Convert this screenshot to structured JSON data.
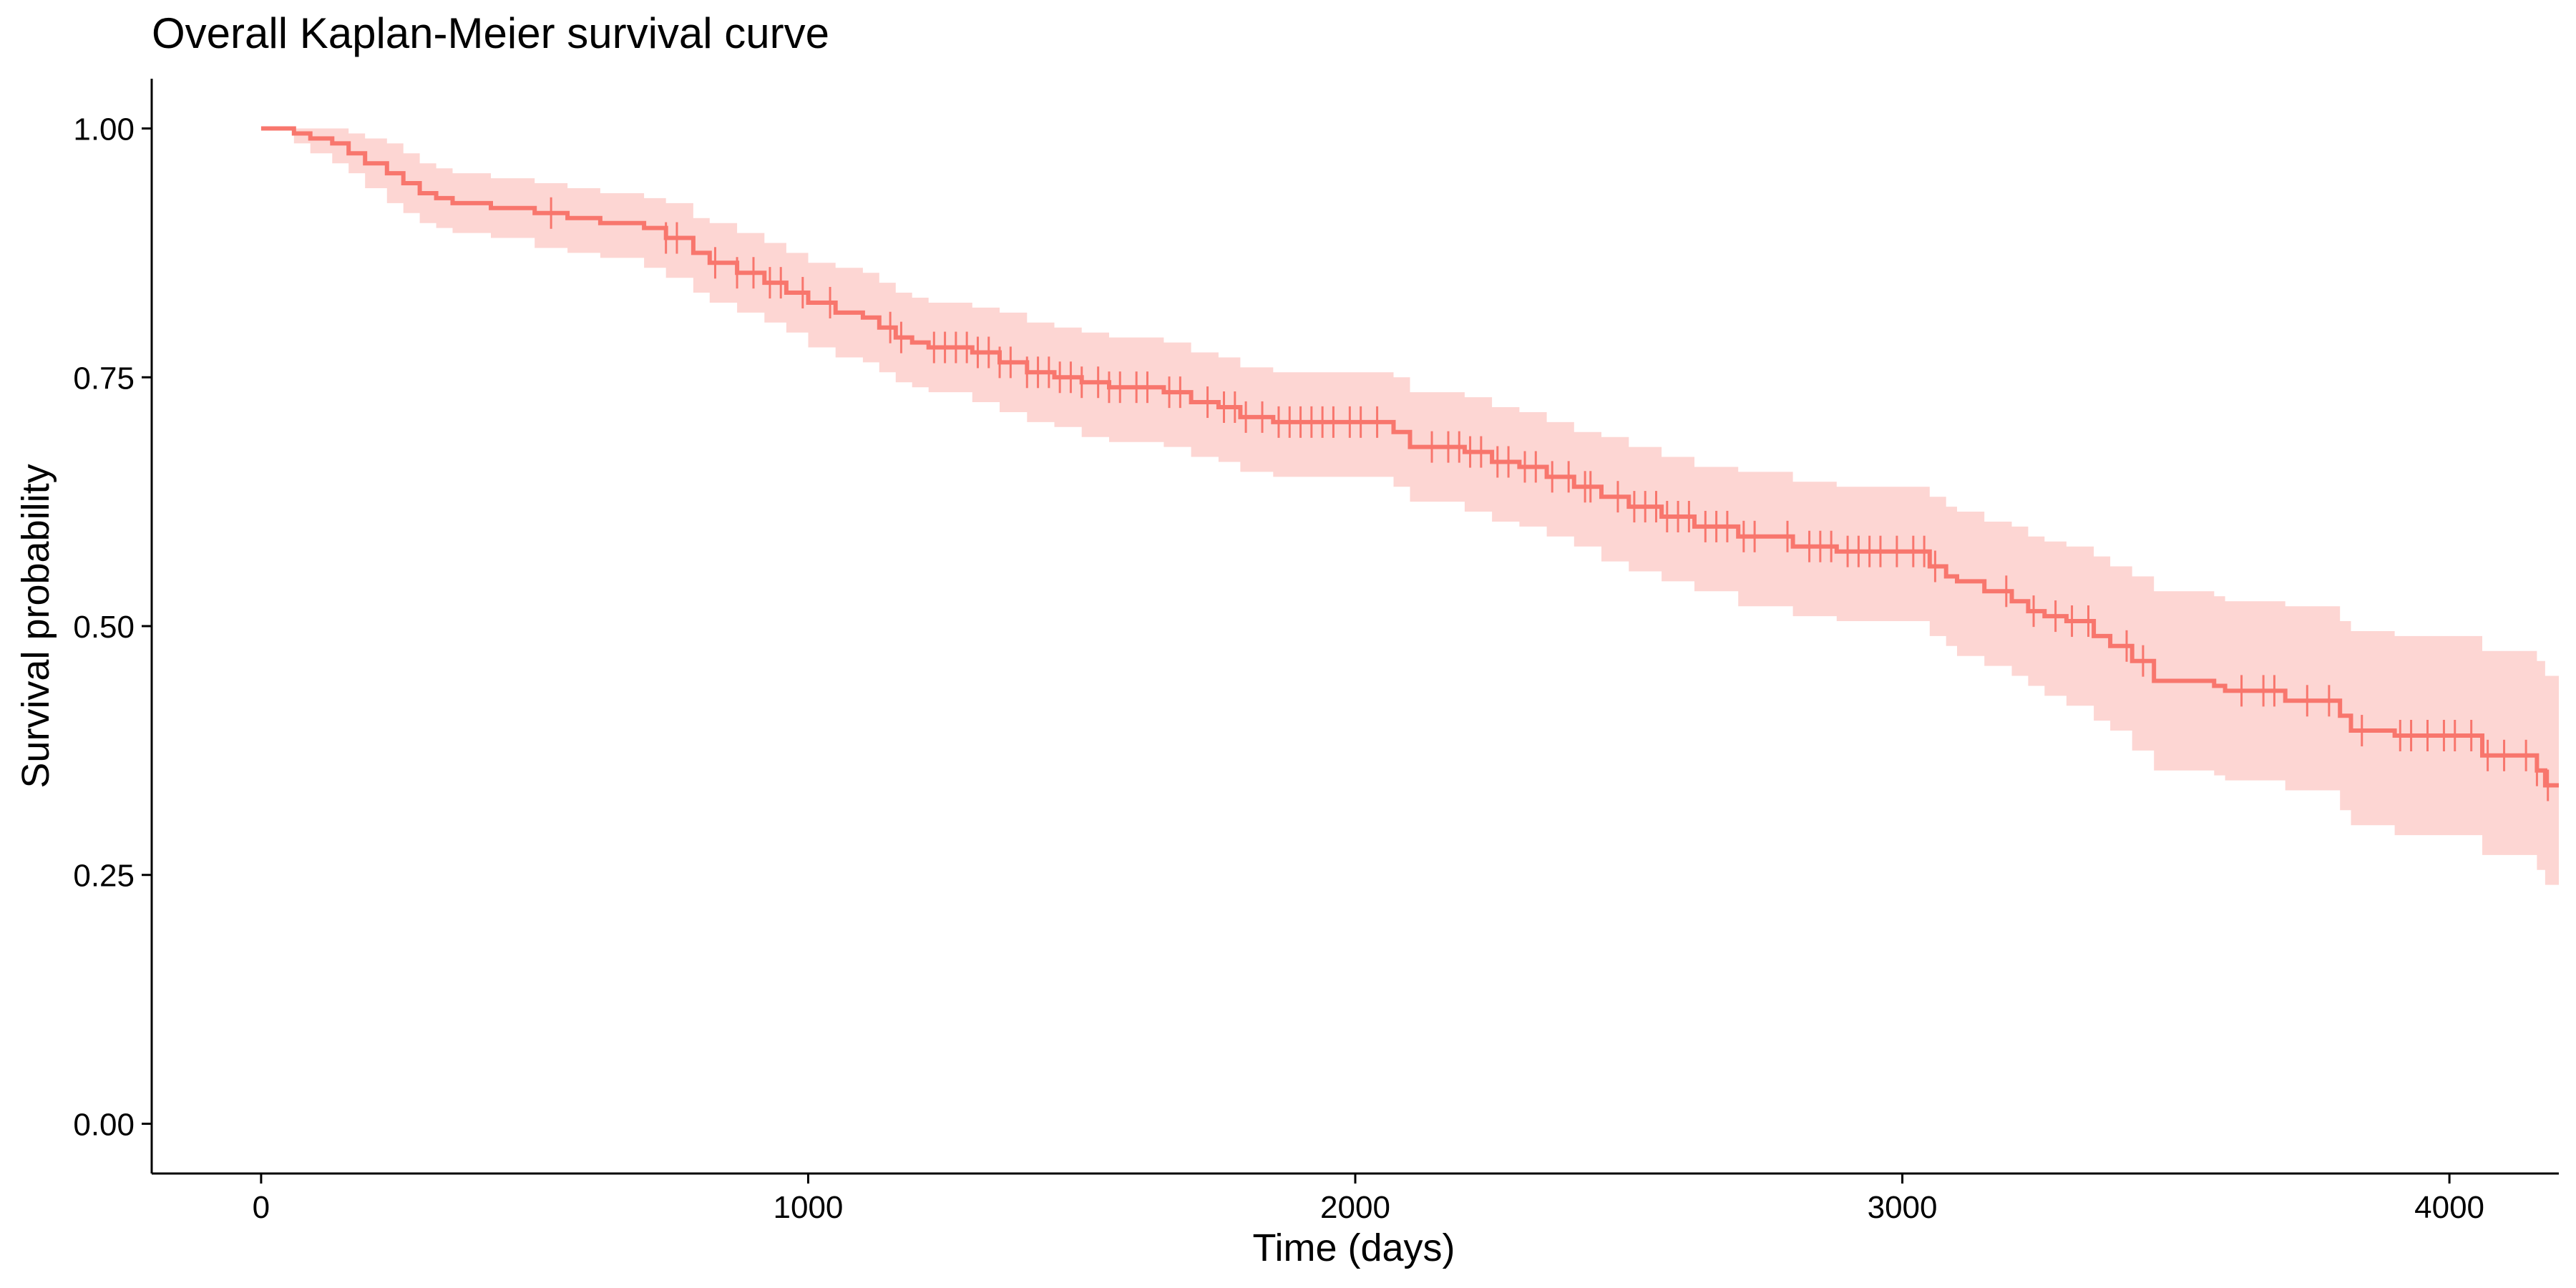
{
  "chart_data": {
    "type": "line",
    "title": "Overall Kaplan-Meier survival curve",
    "xlabel": "Time (days)",
    "ylabel": "Survival probability",
    "xlim": [
      -200,
      4200
    ],
    "ylim": [
      -0.05,
      1.05
    ],
    "x_ticks": [
      0,
      1000,
      2000,
      3000,
      4000
    ],
    "x_tick_labels": [
      "0",
      "1000",
      "2000",
      "3000",
      "4000"
    ],
    "y_ticks": [
      0.0,
      0.25,
      0.5,
      0.75,
      1.0
    ],
    "y_tick_labels": [
      "0.00",
      "0.25",
      "0.50",
      "0.75",
      "1.00"
    ],
    "grid": false,
    "legend": "none",
    "colors": {
      "line": "#F8766D",
      "band": "#F8766D",
      "band_opacity": 0.3,
      "axis": "#000000"
    },
    "series": [
      {
        "step": "post",
        "x": [
          0,
          60,
          90,
          130,
          160,
          190,
          230,
          260,
          290,
          320,
          350,
          420,
          500,
          560,
          620,
          700,
          740,
          790,
          820,
          870,
          920,
          960,
          1000,
          1050,
          1100,
          1130,
          1160,
          1190,
          1220,
          1300,
          1350,
          1400,
          1450,
          1500,
          1550,
          1650,
          1700,
          1750,
          1790,
          1850,
          2070,
          2100,
          2200,
          2250,
          2300,
          2350,
          2400,
          2450,
          2500,
          2560,
          2620,
          2700,
          2800,
          2880,
          3050,
          3080,
          3100,
          3150,
          3200,
          3230,
          3260,
          3300,
          3350,
          3380,
          3420,
          3460,
          3570,
          3590,
          3700,
          3800,
          3820,
          3840,
          3900,
          4060,
          4160,
          4175,
          4200
        ],
        "y": [
          1.0,
          0.995,
          0.99,
          0.985,
          0.975,
          0.965,
          0.955,
          0.945,
          0.935,
          0.93,
          0.925,
          0.92,
          0.915,
          0.91,
          0.905,
          0.9,
          0.89,
          0.875,
          0.865,
          0.855,
          0.845,
          0.835,
          0.825,
          0.815,
          0.81,
          0.8,
          0.79,
          0.785,
          0.78,
          0.775,
          0.765,
          0.755,
          0.75,
          0.745,
          0.74,
          0.735,
          0.725,
          0.72,
          0.71,
          0.705,
          0.695,
          0.68,
          0.675,
          0.665,
          0.66,
          0.65,
          0.64,
          0.63,
          0.62,
          0.61,
          0.6,
          0.59,
          0.58,
          0.575,
          0.56,
          0.55,
          0.545,
          0.535,
          0.525,
          0.515,
          0.51,
          0.505,
          0.49,
          0.48,
          0.465,
          0.445,
          0.44,
          0.435,
          0.425,
          0.41,
          0.395,
          0.395,
          0.39,
          0.37,
          0.355,
          0.34,
          0.34
        ],
        "ci_lower": [
          1.0,
          0.985,
          0.975,
          0.965,
          0.955,
          0.94,
          0.925,
          0.915,
          0.905,
          0.9,
          0.895,
          0.89,
          0.88,
          0.875,
          0.87,
          0.86,
          0.85,
          0.835,
          0.825,
          0.815,
          0.805,
          0.795,
          0.78,
          0.77,
          0.765,
          0.755,
          0.745,
          0.74,
          0.735,
          0.725,
          0.715,
          0.705,
          0.7,
          0.69,
          0.685,
          0.68,
          0.67,
          0.665,
          0.655,
          0.65,
          0.64,
          0.625,
          0.615,
          0.605,
          0.6,
          0.59,
          0.58,
          0.565,
          0.555,
          0.545,
          0.535,
          0.52,
          0.51,
          0.505,
          0.49,
          0.48,
          0.47,
          0.46,
          0.45,
          0.44,
          0.43,
          0.42,
          0.405,
          0.395,
          0.375,
          0.355,
          0.35,
          0.345,
          0.335,
          0.315,
          0.3,
          0.3,
          0.29,
          0.27,
          0.255,
          0.24,
          0.24
        ],
        "ci_upper": [
          1.0,
          1.0,
          1.0,
          1.0,
          0.995,
          0.99,
          0.985,
          0.975,
          0.965,
          0.96,
          0.955,
          0.95,
          0.945,
          0.94,
          0.935,
          0.93,
          0.925,
          0.91,
          0.905,
          0.895,
          0.885,
          0.875,
          0.865,
          0.86,
          0.855,
          0.845,
          0.835,
          0.83,
          0.825,
          0.82,
          0.815,
          0.805,
          0.8,
          0.795,
          0.79,
          0.785,
          0.775,
          0.77,
          0.76,
          0.755,
          0.75,
          0.735,
          0.73,
          0.72,
          0.715,
          0.705,
          0.695,
          0.69,
          0.68,
          0.67,
          0.66,
          0.655,
          0.645,
          0.64,
          0.63,
          0.62,
          0.615,
          0.605,
          0.6,
          0.59,
          0.585,
          0.58,
          0.57,
          0.56,
          0.55,
          0.535,
          0.53,
          0.525,
          0.52,
          0.505,
          0.495,
          0.495,
          0.49,
          0.475,
          0.465,
          0.45,
          0.45
        ]
      }
    ],
    "censor_times": [
      530,
      740,
      760,
      830,
      870,
      900,
      930,
      950,
      990,
      1040,
      1150,
      1170,
      1230,
      1250,
      1270,
      1290,
      1310,
      1330,
      1350,
      1370,
      1400,
      1420,
      1440,
      1460,
      1480,
      1500,
      1530,
      1550,
      1570,
      1600,
      1620,
      1660,
      1680,
      1730,
      1760,
      1780,
      1800,
      1830,
      1860,
      1880,
      1900,
      1920,
      1940,
      1960,
      1990,
      2010,
      2040,
      2140,
      2170,
      2190,
      2210,
      2230,
      2260,
      2280,
      2310,
      2330,
      2360,
      2390,
      2420,
      2430,
      2480,
      2510,
      2530,
      2550,
      2570,
      2590,
      2610,
      2640,
      2660,
      2680,
      2710,
      2730,
      2790,
      2830,
      2850,
      2870,
      2900,
      2920,
      2940,
      2960,
      2990,
      3020,
      3040,
      3060,
      3190,
      3240,
      3280,
      3310,
      3340,
      3410,
      3440,
      3620,
      3660,
      3680,
      3740,
      3780,
      3840,
      3910,
      3930,
      3960,
      3990,
      4010,
      4040,
      4070,
      4100,
      4140,
      4160,
      4180
    ]
  }
}
